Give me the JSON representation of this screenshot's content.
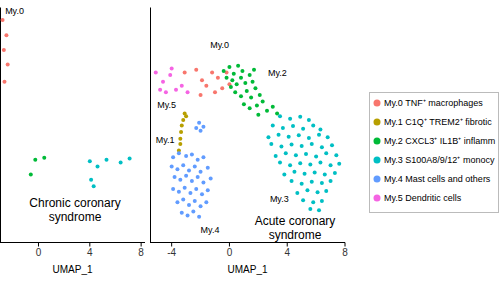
{
  "chart_data": [
    {
      "type": "scatter",
      "title": "Chronic coronary syndrome",
      "xlabel": "UMAP_1",
      "xlim": [
        -3,
        8.3
      ],
      "xticks": [
        0,
        4,
        8
      ],
      "ylim": [
        -10,
        7.7
      ],
      "tick_labels": "x",
      "series": [
        {
          "color": "#F8766D",
          "x": [
            -2.8,
            -2.5,
            -2.7,
            -2.4,
            -2.65
          ],
          "values": [
            6.75,
            5.6,
            4.5,
            3.4,
            2.1
          ]
        },
        {
          "color": "#00BA38",
          "x": [
            -0.25,
            0.45,
            -0.6
          ],
          "values": [
            -3.8,
            -3.65,
            -4.9
          ]
        },
        {
          "color": "#00BFC4",
          "x": [
            4.0,
            4.6,
            5.3,
            6.4,
            7.1,
            4.1,
            4.3
          ],
          "values": [
            -3.9,
            -4.3,
            -3.8,
            -4.0,
            -3.7,
            -5.3,
            -5.8
          ]
        }
      ],
      "annotations": [
        {
          "text": "My.0",
          "x": -2.6,
          "y": 7.2
        }
      ]
    },
    {
      "type": "scatter",
      "title": "Acute coronary syndrome",
      "xlabel": "UMAP_1",
      "xlim": [
        -5.5,
        8
      ],
      "xticks": [
        -4,
        0,
        4,
        8
      ],
      "ylim": [
        -10,
        7.7
      ],
      "tick_labels": "x",
      "legend": "right",
      "series": [
        {
          "name": "My.0 TNF⁺ macrophages",
          "color": "#F8766D",
          "x": [
            -2.3,
            -1.9,
            -1.6,
            -1.2,
            -0.8,
            -0.5,
            -0.2,
            -2.0,
            -1.0,
            -3.1,
            0.0
          ],
          "values": [
            3.0,
            2.2,
            1.8,
            2.8,
            2.4,
            1.6,
            2.8,
            1.1,
            1.3,
            2.8,
            1.9
          ]
        },
        {
          "name": "My.1 C1Q⁺ TREM2⁺ fibrotic",
          "color": "#B79F00",
          "x": [
            -3.1,
            -3.2,
            -3.3,
            -3.35,
            -3.4,
            -3.4,
            -3.5,
            -3.0
          ],
          "values": [
            -0.3,
            -0.8,
            -1.2,
            -1.7,
            -2.2,
            -2.6,
            -3.1,
            -0.5
          ]
        },
        {
          "name": "My.2 CXCL3⁺ IL1B⁺ inflamm",
          "color": "#00BA38",
          "x": [
            -0.4,
            0.0,
            0.3,
            0.6,
            0.9,
            0.2,
            0.5,
            0.8,
            1.1,
            1.4,
            1.7,
            0.4,
            0.8,
            1.2,
            1.5,
            1.8,
            2.1,
            1.0,
            1.4,
            1.9,
            2.3,
            2.6,
            3.0,
            3.3,
            2.0,
            1.6,
            0.1,
            -0.2
          ],
          "values": [
            2.9,
            3.2,
            2.7,
            3.3,
            2.9,
            2.2,
            1.9,
            2.4,
            2.0,
            2.6,
            3.0,
            1.3,
            1.0,
            1.4,
            0.9,
            1.6,
            1.1,
            0.4,
            0.1,
            0.3,
            0.6,
            -0.1,
            0.2,
            -0.3,
            -0.4,
            2.1,
            1.7,
            2.4
          ]
        },
        {
          "name": "My.3 S100A8/9/12⁺ monocy",
          "color": "#00BFC4",
          "x": [
            3.5,
            4.2,
            4.9,
            5.5,
            3.0,
            3.7,
            4.4,
            5.1,
            5.8,
            6.3,
            2.7,
            3.4,
            4.1,
            4.8,
            5.5,
            6.2,
            6.8,
            2.9,
            3.6,
            4.3,
            5.0,
            5.7,
            6.4,
            7.1,
            3.2,
            3.9,
            4.6,
            5.3,
            6.0,
            6.7,
            7.4,
            3.5,
            4.2,
            4.9,
            5.6,
            6.3,
            7.0,
            7.6,
            3.8,
            4.5,
            5.2,
            5.9,
            6.6,
            7.3,
            4.3,
            5.0,
            5.7,
            6.4,
            7.0,
            4.7,
            5.4,
            6.1,
            6.7,
            5.1,
            5.8,
            6.4,
            5.6,
            6.2
          ],
          "values": [
            -0.5,
            -0.7,
            -0.55,
            -0.8,
            -1.2,
            -1.4,
            -1.25,
            -1.45,
            -1.2,
            -1.5,
            -2.1,
            -1.9,
            -2.05,
            -1.95,
            -2.15,
            -1.9,
            -2.1,
            -2.6,
            -2.8,
            -2.65,
            -2.75,
            -2.6,
            -2.85,
            -2.7,
            -3.5,
            -3.3,
            -3.45,
            -3.35,
            -3.55,
            -3.3,
            -3.45,
            -4.0,
            -4.2,
            -4.05,
            -4.15,
            -4.0,
            -4.2,
            -4.1,
            -4.9,
            -4.7,
            -4.85,
            -4.75,
            -4.9,
            -4.8,
            -5.4,
            -5.6,
            -5.45,
            -5.55,
            -5.4,
            -6.3,
            -6.1,
            -6.25,
            -6.15,
            -6.85,
            -7.0,
            -6.9,
            -7.5,
            -7.6
          ]
        },
        {
          "name": "My.4 Mast cells and others",
          "color": "#619CFF",
          "x": [
            -2.1,
            -1.8,
            -2.0,
            -2.3,
            -3.9,
            -3.5,
            -3.0,
            -2.6,
            -2.2,
            -1.8,
            -4.0,
            -3.6,
            -3.2,
            -2.8,
            -2.4,
            -2.0,
            -1.5,
            -3.8,
            -3.4,
            -3.0,
            -2.6,
            -2.2,
            -1.8,
            -1.3,
            -3.9,
            -3.5,
            -3.1,
            -2.7,
            -2.3,
            -1.9,
            -1.5,
            -3.6,
            -3.2,
            -2.8,
            -2.4,
            -2.0,
            -1.6,
            -3.3,
            -2.9,
            -2.5,
            -2.1
          ],
          "values": [
            -1.0,
            -1.3,
            -1.6,
            -1.4,
            -3.6,
            -3.3,
            -3.5,
            -3.4,
            -3.8,
            -3.6,
            -4.3,
            -4.5,
            -4.2,
            -4.6,
            -4.3,
            -4.7,
            -4.4,
            -5.1,
            -5.3,
            -5.0,
            -5.4,
            -5.1,
            -5.5,
            -5.2,
            -6.0,
            -6.2,
            -5.9,
            -6.3,
            -6.0,
            -6.4,
            -6.1,
            -7.0,
            -6.8,
            -7.2,
            -6.9,
            -7.3,
            -7.0,
            -7.8,
            -8.0,
            -7.7,
            -8.1
          ]
        },
        {
          "name": "My.5 Dendritic cells",
          "color": "#F564E3",
          "x": [
            -5.1,
            -4.8,
            -4.4,
            -4.1,
            -3.7,
            -3.3,
            -2.9,
            -4.6,
            -4.0
          ],
          "values": [
            2.8,
            1.5,
            1.3,
            2.6,
            1.5,
            1.8,
            1.3,
            2.1,
            3.1
          ]
        }
      ],
      "annotations": [
        {
          "text": "My.0",
          "x": -1.33,
          "y": 4.64
        },
        {
          "text": "My.2",
          "x": 2.67,
          "y": 2.53
        },
        {
          "text": "My.5",
          "x": -5.0,
          "y": 0.11
        },
        {
          "text": "My.1",
          "x": -5.1,
          "y": -2.53
        },
        {
          "text": "My.3",
          "x": 2.8,
          "y": -7.0
        },
        {
          "text": "My.4",
          "x": -2.0,
          "y": -9.3
        }
      ]
    }
  ]
}
